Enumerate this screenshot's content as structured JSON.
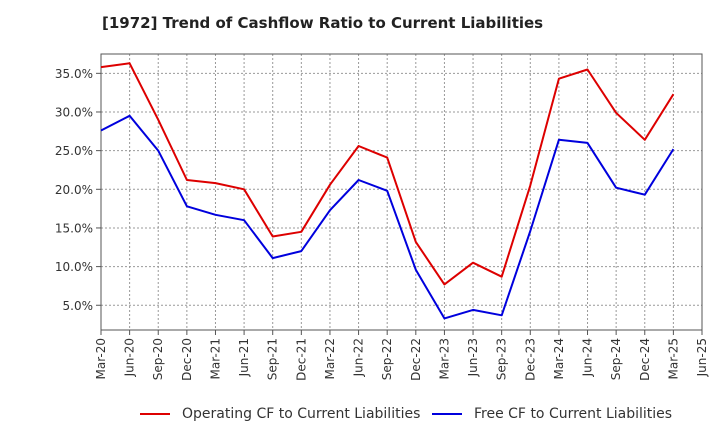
{
  "chart_data": {
    "type": "line",
    "title": "[1972]  Trend of Cashflow Ratio to Current Liabilities",
    "xlabel": "",
    "ylabel": "",
    "x": [
      "Mar-20",
      "Jun-20",
      "Sep-20",
      "Dec-20",
      "Mar-21",
      "Jun-21",
      "Sep-21",
      "Dec-21",
      "Mar-22",
      "Jun-22",
      "Sep-22",
      "Dec-22",
      "Mar-23",
      "Jun-23",
      "Sep-23",
      "Dec-23",
      "Mar-24",
      "Jun-24",
      "Sep-24",
      "Dec-24",
      "Mar-25",
      "Jun-25"
    ],
    "y_ticks": [
      "5.0%",
      "10.0%",
      "15.0%",
      "20.0%",
      "25.0%",
      "30.0%",
      "35.0%"
    ],
    "y_tick_values": [
      5,
      10,
      15,
      20,
      25,
      30,
      35
    ],
    "ylim": [
      1.8,
      37.5
    ],
    "grid": true,
    "legend_position": "bottom",
    "series": [
      {
        "name": "Operating CF to Current Liabilities",
        "color": "#dd0000",
        "values": [
          35.8,
          36.3,
          29.0,
          21.2,
          20.8,
          20.0,
          13.9,
          14.5,
          20.6,
          25.6,
          24.1,
          13.2,
          7.7,
          10.5,
          8.7,
          20.5,
          34.3,
          35.5,
          29.9,
          26.4,
          32.3,
          null
        ]
      },
      {
        "name": "Free CF to Current Liabilities",
        "color": "#0000dd",
        "values": [
          27.6,
          29.5,
          25.0,
          17.8,
          16.7,
          16.0,
          11.1,
          12.0,
          17.3,
          21.2,
          19.8,
          9.6,
          3.3,
          4.4,
          3.7,
          14.6,
          26.4,
          26.0,
          20.2,
          19.3,
          25.2,
          null
        ]
      }
    ]
  }
}
